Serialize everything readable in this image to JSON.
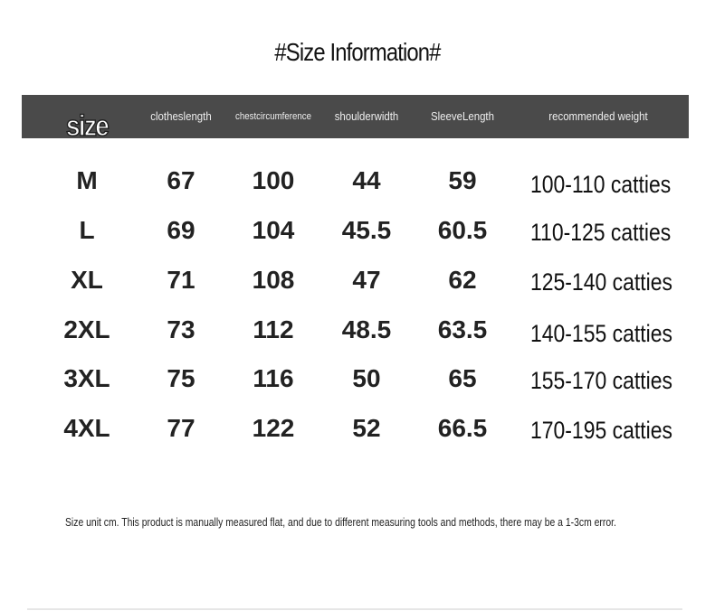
{
  "title": "#Size Information#",
  "header": [
    "size",
    "clothes length",
    "chest circumference",
    "shoulder width",
    "Sleeve Length",
    "recommended weight"
  ],
  "header_lines": [
    [
      "size"
    ],
    [
      "clothes",
      "length"
    ],
    [
      "chest",
      "circumference"
    ],
    [
      "shoulder",
      "width"
    ],
    [
      "Sleeve",
      "Length"
    ],
    [
      "recommended weight"
    ]
  ],
  "rows": [
    [
      "M",
      "67",
      "100",
      "44",
      "59",
      "100-110 catties"
    ],
    [
      "L",
      "69",
      "104",
      "45.5",
      "60.5",
      "110-125 catties"
    ],
    [
      "XL",
      "71",
      "108",
      "47",
      "62",
      "125-140 catties"
    ],
    [
      "2XL",
      "73",
      "112",
      "48.5",
      "63.5",
      "140-155 catties"
    ],
    [
      "3XL",
      "75",
      "116",
      "50",
      "65",
      "155-170 catties"
    ],
    [
      "4XL",
      "77",
      "122",
      "52",
      "66.5",
      "170-195 catties"
    ]
  ],
  "note": "Size unit cm. This product is manually measured flat, and due to different measuring tools and methods, there may be a 1-3cm error.",
  "colors": {
    "header_bg": "#4a4a4a",
    "header_text": "#eeeeee"
  }
}
